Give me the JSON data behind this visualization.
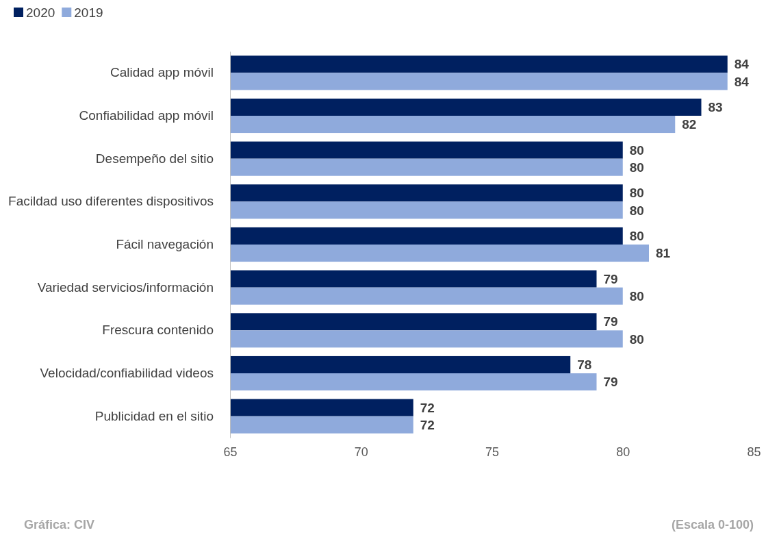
{
  "chart_data": {
    "type": "bar",
    "orientation": "horizontal",
    "categories": [
      "Calidad app móvil",
      "Confiabilidad app móvil",
      "Desempeño del sitio",
      "Facildad uso diferentes dispositivos",
      "Fácil navegación",
      "Variedad servicios/información",
      "Frescura contenido",
      "Velocidad/confiabilidad videos",
      "Publicidad en el sitio"
    ],
    "series": [
      {
        "name": "2020",
        "color": "#002060",
        "values": [
          84,
          83,
          80,
          80,
          80,
          79,
          79,
          78,
          72
        ]
      },
      {
        "name": "2019",
        "color": "#8faadc",
        "values": [
          84,
          82,
          80,
          80,
          81,
          80,
          80,
          79,
          72
        ]
      }
    ],
    "xlim": [
      65,
      85
    ],
    "xticks": [
      65,
      70,
      75,
      80,
      85
    ],
    "grid": false,
    "legend": "top left",
    "data_labels": true,
    "annotations": [
      "Gráfica: CIV",
      "(Escala 0-100)"
    ]
  }
}
